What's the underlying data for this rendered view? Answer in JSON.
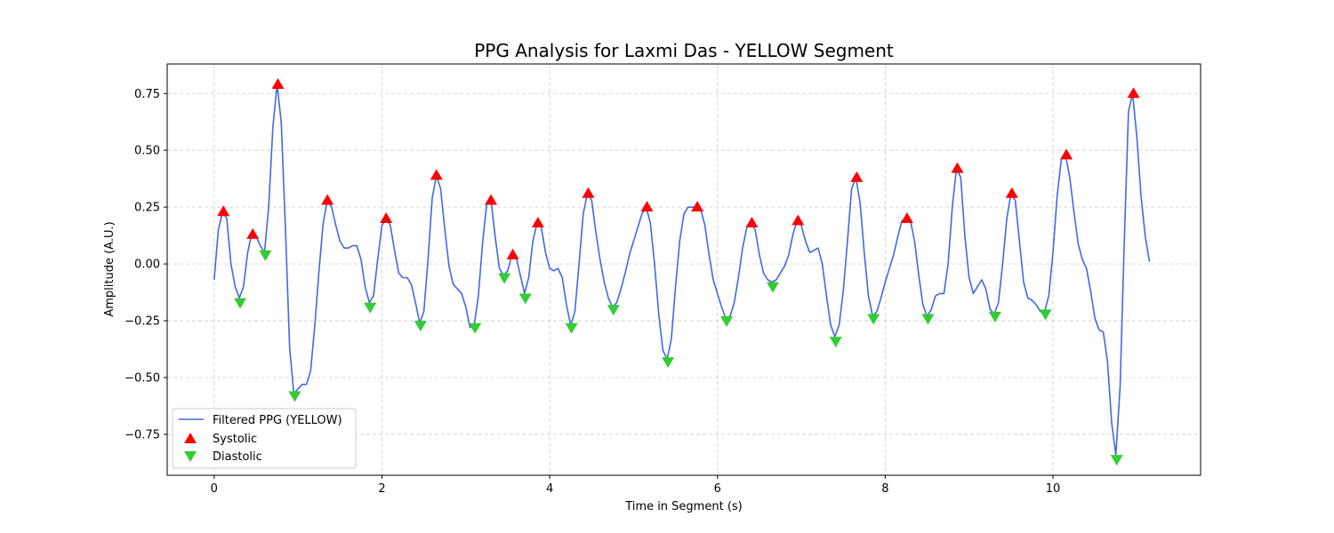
{
  "chart_data": {
    "type": "line",
    "title": "PPG Analysis for Laxmi Das - YELLOW Segment",
    "xlabel": "Time in Segment (s)",
    "ylabel": "Amplitude (A.U.)",
    "xlim": [
      -0.56,
      11.76
    ],
    "ylim": [
      -0.93,
      0.88
    ],
    "xticks": [
      0,
      2,
      4,
      6,
      8,
      10
    ],
    "yticks": [
      -0.75,
      -0.5,
      -0.25,
      0.0,
      0.25,
      0.5,
      0.75
    ],
    "ytick_labels": [
      "−0.75",
      "−0.50",
      "−0.25",
      "0.00",
      "0.25",
      "0.50",
      "0.75"
    ],
    "grid": true,
    "legend_position": "lower-left",
    "colors": {
      "line": "#4169e1",
      "systolic": "#ff0000",
      "diastolic": "#32cd32"
    },
    "series": [
      {
        "name": "Filtered PPG (YELLOW)",
        "style": "line",
        "points": [
          [
            0.0,
            -0.07
          ],
          [
            0.05,
            0.15
          ],
          [
            0.1,
            0.23
          ],
          [
            0.15,
            0.2
          ],
          [
            0.2,
            0.0
          ],
          [
            0.25,
            -0.1
          ],
          [
            0.3,
            -0.15
          ],
          [
            0.35,
            -0.1
          ],
          [
            0.4,
            0.05
          ],
          [
            0.45,
            0.14
          ],
          [
            0.5,
            0.12
          ],
          [
            0.55,
            0.08
          ],
          [
            0.6,
            0.05
          ],
          [
            0.65,
            0.25
          ],
          [
            0.7,
            0.6
          ],
          [
            0.75,
            0.79
          ],
          [
            0.8,
            0.62
          ],
          [
            0.85,
            0.15
          ],
          [
            0.9,
            -0.37
          ],
          [
            0.95,
            -0.57
          ],
          [
            1.0,
            -0.55
          ],
          [
            1.05,
            -0.53
          ],
          [
            1.1,
            -0.53
          ],
          [
            1.15,
            -0.47
          ],
          [
            1.2,
            -0.27
          ],
          [
            1.25,
            -0.03
          ],
          [
            1.3,
            0.18
          ],
          [
            1.35,
            0.28
          ],
          [
            1.4,
            0.25
          ],
          [
            1.45,
            0.17
          ],
          [
            1.5,
            0.1
          ],
          [
            1.55,
            0.07
          ],
          [
            1.6,
            0.07
          ],
          [
            1.65,
            0.08
          ],
          [
            1.7,
            0.08
          ],
          [
            1.75,
            0.02
          ],
          [
            1.8,
            -0.1
          ],
          [
            1.85,
            -0.17
          ],
          [
            1.9,
            -0.14
          ],
          [
            1.95,
            0.02
          ],
          [
            2.0,
            0.17
          ],
          [
            2.05,
            0.2
          ],
          [
            2.1,
            0.17
          ],
          [
            2.15,
            0.06
          ],
          [
            2.2,
            -0.04
          ],
          [
            2.25,
            -0.06
          ],
          [
            2.3,
            -0.06
          ],
          [
            2.35,
            -0.09
          ],
          [
            2.4,
            -0.17
          ],
          [
            2.45,
            -0.26
          ],
          [
            2.5,
            -0.21
          ],
          [
            2.55,
            0.02
          ],
          [
            2.6,
            0.29
          ],
          [
            2.65,
            0.39
          ],
          [
            2.7,
            0.33
          ],
          [
            2.75,
            0.15
          ],
          [
            2.8,
            -0.01
          ],
          [
            2.85,
            -0.09
          ],
          [
            2.9,
            -0.11
          ],
          [
            2.95,
            -0.13
          ],
          [
            3.0,
            -0.19
          ],
          [
            3.05,
            -0.28
          ],
          [
            3.1,
            -0.27
          ],
          [
            3.15,
            -0.14
          ],
          [
            3.2,
            0.09
          ],
          [
            3.25,
            0.27
          ],
          [
            3.3,
            0.28
          ],
          [
            3.35,
            0.12
          ],
          [
            3.4,
            -0.02
          ],
          [
            3.45,
            -0.05
          ],
          [
            3.5,
            -0.03
          ],
          [
            3.55,
            0.04
          ],
          [
            3.6,
            0.03
          ],
          [
            3.65,
            -0.05
          ],
          [
            3.7,
            -0.13
          ],
          [
            3.75,
            -0.06
          ],
          [
            3.8,
            0.1
          ],
          [
            3.85,
            0.18
          ],
          [
            3.9,
            0.16
          ],
          [
            3.95,
            0.05
          ],
          [
            4.0,
            -0.02
          ],
          [
            4.05,
            -0.03
          ],
          [
            4.1,
            -0.02
          ],
          [
            4.15,
            -0.06
          ],
          [
            4.2,
            -0.18
          ],
          [
            4.25,
            -0.27
          ],
          [
            4.3,
            -0.21
          ],
          [
            4.35,
            0.0
          ],
          [
            4.4,
            0.22
          ],
          [
            4.45,
            0.31
          ],
          [
            4.5,
            0.28
          ],
          [
            4.55,
            0.14
          ],
          [
            4.6,
            0.02
          ],
          [
            4.65,
            -0.08
          ],
          [
            4.7,
            -0.15
          ],
          [
            4.75,
            -0.19
          ],
          [
            4.8,
            -0.17
          ],
          [
            4.85,
            -0.11
          ],
          [
            4.9,
            -0.04
          ],
          [
            4.95,
            0.04
          ],
          [
            5.0,
            0.1
          ],
          [
            5.05,
            0.16
          ],
          [
            5.1,
            0.22
          ],
          [
            5.15,
            0.25
          ],
          [
            5.2,
            0.18
          ],
          [
            5.25,
            0.0
          ],
          [
            5.3,
            -0.22
          ],
          [
            5.35,
            -0.38
          ],
          [
            5.4,
            -0.42
          ],
          [
            5.45,
            -0.33
          ],
          [
            5.5,
            -0.1
          ],
          [
            5.55,
            0.1
          ],
          [
            5.6,
            0.22
          ],
          [
            5.65,
            0.25
          ],
          [
            5.7,
            0.25
          ],
          [
            5.75,
            0.25
          ],
          [
            5.8,
            0.24
          ],
          [
            5.85,
            0.17
          ],
          [
            5.9,
            0.04
          ],
          [
            5.95,
            -0.07
          ],
          [
            6.0,
            -0.13
          ],
          [
            6.05,
            -0.19
          ],
          [
            6.1,
            -0.24
          ],
          [
            6.15,
            -0.23
          ],
          [
            6.2,
            -0.17
          ],
          [
            6.25,
            -0.06
          ],
          [
            6.3,
            0.07
          ],
          [
            6.35,
            0.16
          ],
          [
            6.4,
            0.18
          ],
          [
            6.45,
            0.15
          ],
          [
            6.5,
            0.04
          ],
          [
            6.55,
            -0.04
          ],
          [
            6.6,
            -0.07
          ],
          [
            6.65,
            -0.08
          ],
          [
            6.7,
            -0.07
          ],
          [
            6.75,
            -0.04
          ],
          [
            6.8,
            -0.01
          ],
          [
            6.85,
            0.04
          ],
          [
            6.9,
            0.13
          ],
          [
            6.95,
            0.19
          ],
          [
            7.0,
            0.17
          ],
          [
            7.05,
            0.1
          ],
          [
            7.1,
            0.05
          ],
          [
            7.15,
            0.06
          ],
          [
            7.2,
            0.07
          ],
          [
            7.25,
            0.0
          ],
          [
            7.3,
            -0.14
          ],
          [
            7.35,
            -0.27
          ],
          [
            7.4,
            -0.32
          ],
          [
            7.45,
            -0.27
          ],
          [
            7.5,
            -0.12
          ],
          [
            7.55,
            0.1
          ],
          [
            7.6,
            0.33
          ],
          [
            7.65,
            0.38
          ],
          [
            7.7,
            0.27
          ],
          [
            7.75,
            0.05
          ],
          [
            7.8,
            -0.14
          ],
          [
            7.85,
            -0.23
          ],
          [
            7.9,
            -0.21
          ],
          [
            7.95,
            -0.15
          ],
          [
            8.0,
            -0.08
          ],
          [
            8.05,
            -0.02
          ],
          [
            8.1,
            0.04
          ],
          [
            8.15,
            0.12
          ],
          [
            8.2,
            0.19
          ],
          [
            8.25,
            0.2
          ],
          [
            8.3,
            0.19
          ],
          [
            8.35,
            0.1
          ],
          [
            8.4,
            -0.05
          ],
          [
            8.45,
            -0.18
          ],
          [
            8.5,
            -0.23
          ],
          [
            8.55,
            -0.2
          ],
          [
            8.6,
            -0.14
          ],
          [
            8.65,
            -0.13
          ],
          [
            8.7,
            -0.13
          ],
          [
            8.75,
            0.0
          ],
          [
            8.8,
            0.25
          ],
          [
            8.85,
            0.42
          ],
          [
            8.9,
            0.38
          ],
          [
            8.95,
            0.12
          ],
          [
            9.0,
            -0.06
          ],
          [
            9.05,
            -0.13
          ],
          [
            9.1,
            -0.1
          ],
          [
            9.15,
            -0.07
          ],
          [
            9.2,
            -0.11
          ],
          [
            9.25,
            -0.2
          ],
          [
            9.3,
            -0.22
          ],
          [
            9.35,
            -0.17
          ],
          [
            9.4,
            0.0
          ],
          [
            9.45,
            0.2
          ],
          [
            9.5,
            0.31
          ],
          [
            9.55,
            0.28
          ],
          [
            9.6,
            0.1
          ],
          [
            9.65,
            -0.08
          ],
          [
            9.7,
            -0.15
          ],
          [
            9.75,
            -0.16
          ],
          [
            9.8,
            -0.18
          ],
          [
            9.85,
            -0.21
          ],
          [
            9.9,
            -0.21
          ],
          [
            9.95,
            -0.14
          ],
          [
            10.0,
            0.05
          ],
          [
            10.05,
            0.3
          ],
          [
            10.1,
            0.46
          ],
          [
            10.15,
            0.48
          ],
          [
            10.2,
            0.38
          ],
          [
            10.25,
            0.23
          ],
          [
            10.3,
            0.09
          ],
          [
            10.35,
            0.02
          ],
          [
            10.4,
            -0.02
          ],
          [
            10.45,
            -0.12
          ],
          [
            10.5,
            -0.24
          ],
          [
            10.55,
            -0.29
          ],
          [
            10.6,
            -0.3
          ],
          [
            10.65,
            -0.43
          ],
          [
            10.7,
            -0.7
          ],
          [
            10.75,
            -0.84
          ],
          [
            10.8,
            -0.54
          ],
          [
            10.85,
            0.1
          ],
          [
            10.9,
            0.67
          ],
          [
            10.95,
            0.75
          ],
          [
            11.0,
            0.56
          ],
          [
            11.05,
            0.3
          ],
          [
            11.1,
            0.12
          ],
          [
            11.15,
            0.01
          ]
        ]
      },
      {
        "name": "Systolic",
        "style": "marker-up",
        "points": [
          [
            0.11,
            0.23
          ],
          [
            0.46,
            0.13
          ],
          [
            0.76,
            0.79
          ],
          [
            1.35,
            0.28
          ],
          [
            2.05,
            0.2
          ],
          [
            2.65,
            0.39
          ],
          [
            3.3,
            0.28
          ],
          [
            3.56,
            0.04
          ],
          [
            3.86,
            0.18
          ],
          [
            4.46,
            0.31
          ],
          [
            5.16,
            0.25
          ],
          [
            5.76,
            0.25
          ],
          [
            6.41,
            0.18
          ],
          [
            6.96,
            0.19
          ],
          [
            7.66,
            0.38
          ],
          [
            8.26,
            0.2
          ],
          [
            8.86,
            0.42
          ],
          [
            9.51,
            0.31
          ],
          [
            10.16,
            0.48
          ],
          [
            10.96,
            0.75
          ]
        ]
      },
      {
        "name": "Diastolic",
        "style": "marker-down",
        "points": [
          [
            0.31,
            -0.17
          ],
          [
            0.61,
            0.04
          ],
          [
            0.96,
            -0.58
          ],
          [
            1.86,
            -0.19
          ],
          [
            2.46,
            -0.27
          ],
          [
            3.11,
            -0.28
          ],
          [
            3.46,
            -0.06
          ],
          [
            3.71,
            -0.15
          ],
          [
            4.26,
            -0.28
          ],
          [
            4.76,
            -0.2
          ],
          [
            5.41,
            -0.43
          ],
          [
            6.11,
            -0.25
          ],
          [
            6.66,
            -0.1
          ],
          [
            7.41,
            -0.34
          ],
          [
            7.86,
            -0.24
          ],
          [
            8.51,
            -0.24
          ],
          [
            9.31,
            -0.23
          ],
          [
            9.91,
            -0.22
          ],
          [
            10.76,
            -0.86
          ]
        ]
      }
    ]
  }
}
